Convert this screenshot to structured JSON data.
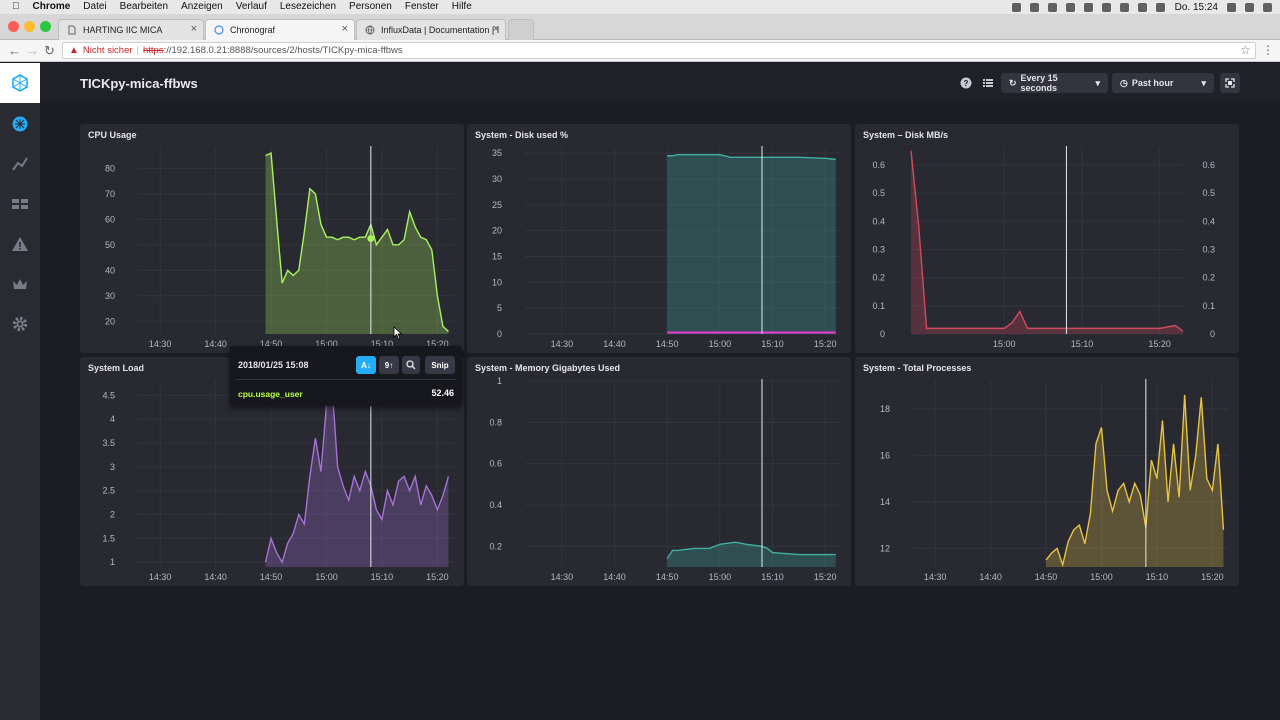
{
  "menubar": {
    "items": [
      "Chrome",
      "Datei",
      "Bearbeiten",
      "Anzeigen",
      "Verlauf",
      "Lesezeichen",
      "Personen",
      "Fenster",
      "Hilfe"
    ],
    "clock": "Do. 15:24"
  },
  "tabs": [
    {
      "label": "HARTING IIC MICA",
      "icon": "document-icon",
      "active": false
    },
    {
      "label": "Chronograf",
      "icon": "chronograf-icon",
      "active": true
    },
    {
      "label": "InfluxData | Documentation | I",
      "icon": "globe-icon",
      "active": false
    }
  ],
  "address": {
    "insecure_label": "Nicht sicher",
    "scheme": "https",
    "rest": "://192.168.0.21:8888/sources/2/hosts/TICKpy-mica-ffbws"
  },
  "header": {
    "title": "TICKpy-mica-ffbws",
    "refresh_label": "Every 15 seconds",
    "range_label": "Past hour"
  },
  "colors": {
    "cpu": "#a8f25e",
    "disk_used": "#3fb0a2",
    "disk_used_line": "#e83ad6",
    "disk_mb": "#d14b5c",
    "load": "#a772d6",
    "memory": "#3fb0a2",
    "processes": "#e6c340"
  },
  "panels": [
    {
      "title": "CPU Usage",
      "chart_data": {
        "type": "area",
        "x": [
          "14:49",
          "14:50",
          "14:51",
          "14:52",
          "14:53",
          "14:54",
          "14:55",
          "14:56",
          "14:57",
          "14:58",
          "14:59",
          "15:00",
          "15:01",
          "15:02",
          "15:03",
          "15:04",
          "15:05",
          "15:06",
          "15:07",
          "15:08",
          "15:09",
          "15:10",
          "15:11",
          "15:12",
          "15:13",
          "15:14",
          "15:15",
          "15:16",
          "15:17",
          "15:18",
          "15:19",
          "15:20",
          "15:21",
          "15:22"
        ],
        "series": [
          {
            "values": [
              85,
              86,
              60,
              35,
              40,
              38,
              40,
              55,
              72,
              70,
              58,
              53,
              53,
              52,
              53,
              53,
              52,
              53,
              53,
              58,
              50,
              53,
              56,
              50,
              50,
              52,
              63,
              57,
              53,
              52,
              48,
              30,
              18,
              16
            ]
          }
        ],
        "xticks": [
          "14:30",
          "14:40",
          "14:50",
          "15:00",
          "15:10",
          "15:20"
        ],
        "yticks": [
          20,
          30,
          40,
          50,
          60,
          70,
          80
        ],
        "ylim": [
          15,
          88
        ],
        "xlim": [
          "14:26",
          "15:23"
        ],
        "cursor_x": "15:08",
        "cursor_value": 52.46
      }
    },
    {
      "title": "System - Disk used %",
      "chart_data": {
        "type": "area",
        "x": [
          "14:50",
          "14:51",
          "14:52",
          "14:55",
          "15:00",
          "15:02",
          "15:05",
          "15:08",
          "15:10",
          "15:15",
          "15:20",
          "15:22"
        ],
        "series": [
          {
            "values": [
              34.5,
              34.5,
              34.7,
              34.7,
              34.7,
              34.2,
              34.2,
              34.2,
              34.2,
              34.2,
              34.0,
              33.8
            ]
          },
          {
            "values": [
              0.3,
              0.3,
              0.3,
              0.3,
              0.3,
              0.3,
              0.3,
              0.3,
              0.3,
              0.3,
              0.3,
              0.3
            ]
          }
        ],
        "xticks": [
          "14:30",
          "14:40",
          "14:50",
          "15:00",
          "15:10",
          "15:20"
        ],
        "yticks": [
          0,
          5,
          10,
          15,
          20,
          25,
          30,
          35
        ],
        "ylim": [
          0,
          36
        ],
        "xlim": [
          "14:23",
          "15:23"
        ],
        "cursor_x": "15:08"
      }
    },
    {
      "title": "System – Disk MB/s",
      "chart_data": {
        "type": "area",
        "x": [
          "14:48",
          "14:49",
          "14:50",
          "14:52",
          "14:55",
          "14:58",
          "15:00",
          "15:01",
          "15:02",
          "15:03",
          "15:05",
          "15:08",
          "15:10",
          "15:15",
          "15:20",
          "15:22",
          "15:23"
        ],
        "series": [
          {
            "values": [
              0.65,
              0.38,
              0.02,
              0.02,
              0.02,
              0.02,
              0.02,
              0.04,
              0.08,
              0.02,
              0.02,
              0.02,
              0.02,
              0.02,
              0.02,
              0.03,
              0.01
            ]
          }
        ],
        "xticks": [
          "15:00",
          "15:10",
          "15:20"
        ],
        "yticks": [
          0,
          0.1,
          0.2,
          0.3,
          0.4,
          0.5,
          0.6
        ],
        "ylim": [
          0,
          0.66
        ],
        "xlim": [
          "14:48",
          "15:23"
        ],
        "cursor_x": "15:08"
      }
    },
    {
      "title": "System Load",
      "chart_data": {
        "type": "area",
        "x": [
          "14:49",
          "14:50",
          "14:51",
          "14:52",
          "14:53",
          "14:54",
          "14:55",
          "14:56",
          "14:57",
          "14:58",
          "14:59",
          "15:00",
          "15:01",
          "15:02",
          "15:03",
          "15:04",
          "15:05",
          "15:06",
          "15:07",
          "15:08",
          "15:09",
          "15:10",
          "15:11",
          "15:12",
          "15:13",
          "15:14",
          "15:15",
          "15:16",
          "15:17",
          "15:18",
          "15:19",
          "15:20",
          "15:21",
          "15:22"
        ],
        "series": [
          {
            "values": [
              1.0,
              1.5,
              1.2,
              1.0,
              1.4,
              1.6,
              2.0,
              1.8,
              2.8,
              3.6,
              2.9,
              4.3,
              4.7,
              3.0,
              2.6,
              2.3,
              2.8,
              2.5,
              2.9,
              2.6,
              2.1,
              1.9,
              2.5,
              2.2,
              2.7,
              2.8,
              2.5,
              2.8,
              2.2,
              2.6,
              2.4,
              2.1,
              2.4,
              2.8
            ]
          }
        ],
        "xticks": [
          "14:30",
          "14:40",
          "14:50",
          "15:00",
          "15:10",
          "15:20"
        ],
        "yticks": [
          1,
          1.5,
          2,
          2.5,
          3,
          3.5,
          4,
          4.5
        ],
        "ylim": [
          0.9,
          4.8
        ],
        "xlim": [
          "14:26",
          "15:23"
        ],
        "cursor_x": "15:08"
      }
    },
    {
      "title": "System - Memory Gigabytes Used",
      "chart_data": {
        "type": "area",
        "x": [
          "14:50",
          "14:51",
          "14:52",
          "14:55",
          "14:58",
          "15:00",
          "15:03",
          "15:05",
          "15:08",
          "15:09",
          "15:10",
          "15:15",
          "15:20",
          "15:22"
        ],
        "series": [
          {
            "values": [
              0.14,
              0.18,
              0.18,
              0.19,
              0.19,
              0.21,
              0.22,
              0.21,
              0.2,
              0.19,
              0.17,
              0.16,
              0.16,
              0.16
            ]
          }
        ],
        "xticks": [
          "14:30",
          "14:40",
          "14:50",
          "15:00",
          "15:10",
          "15:20"
        ],
        "yticks": [
          0.2,
          0.4,
          0.6,
          0.8,
          1
        ],
        "ylim": [
          0.1,
          1.0
        ],
        "xlim": [
          "14:23",
          "15:23"
        ],
        "cursor_x": "15:08"
      }
    },
    {
      "title": "System - Total Processes",
      "chart_data": {
        "type": "area",
        "x": [
          "14:50",
          "14:51",
          "14:52",
          "14:53",
          "14:54",
          "14:55",
          "14:56",
          "14:57",
          "14:58",
          "14:59",
          "15:00",
          "15:01",
          "15:02",
          "15:03",
          "15:04",
          "15:05",
          "15:06",
          "15:07",
          "15:08",
          "15:09",
          "15:10",
          "15:11",
          "15:12",
          "15:13",
          "15:14",
          "15:15",
          "15:16",
          "15:17",
          "15:18",
          "15:19",
          "15:20",
          "15:21",
          "15:22"
        ],
        "series": [
          {
            "values": [
              11.5,
              11.8,
              12.0,
              11.3,
              12.3,
              12.8,
              13.0,
              12.2,
              13.5,
              16.5,
              17.2,
              14.5,
              13.6,
              14.5,
              14.8,
              14.0,
              14.8,
              14.3,
              12.9,
              15.8,
              15.0,
              17.5,
              14.0,
              16.5,
              14.2,
              18.6,
              14.5,
              16.0,
              18.5,
              15.0,
              14.5,
              16.5,
              12.8
            ]
          }
        ],
        "xticks": [
          "14:30",
          "14:40",
          "14:50",
          "15:00",
          "15:10",
          "15:20"
        ],
        "yticks": [
          12,
          14,
          16,
          18
        ],
        "ylim": [
          11.2,
          19.2
        ],
        "xlim": [
          "14:26",
          "15:23"
        ],
        "cursor_x": "15:08"
      }
    }
  ],
  "tooltip": {
    "time": "2018/01/25 15:08",
    "snip_label": "Snip",
    "series_name": "cpu.usage_user",
    "value": "52.46"
  }
}
